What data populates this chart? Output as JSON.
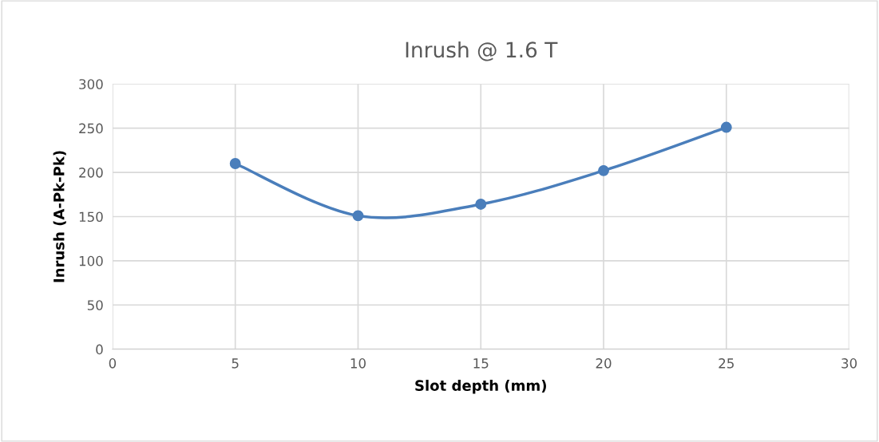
{
  "chart_data": {
    "type": "line",
    "title": "Inrush @ 1.6 T",
    "xlabel": "Slot depth (mm)",
    "ylabel": "Inrush (A-Pk-Pk)",
    "x": [
      5,
      10,
      15,
      20,
      25
    ],
    "series": [
      {
        "color": "#4a7ebb",
        "values": [
          210,
          151,
          164,
          202,
          251
        ]
      }
    ],
    "xlim": [
      0,
      30
    ],
    "xticks": [
      0,
      5,
      10,
      15,
      20,
      25,
      30
    ],
    "ylim": [
      0,
      300
    ],
    "yticks": [
      0,
      50,
      100,
      150,
      200,
      250,
      300
    ],
    "grid": true,
    "marker": "circle",
    "line_style": "solid",
    "legend": false
  }
}
